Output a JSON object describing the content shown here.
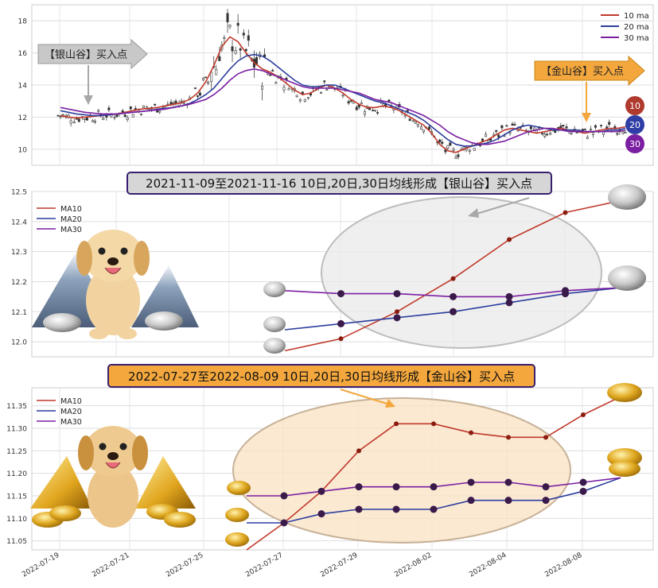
{
  "chart_data": [
    {
      "type": "line",
      "panel": "overview",
      "description_of_series": "candlestick price with 10/20/30 day moving averages",
      "ylim": [
        9.0,
        19.0
      ],
      "yticks": [
        10,
        12,
        14,
        16,
        18
      ],
      "grid": true,
      "legend_position": "top-right",
      "legend": [
        "10 ma",
        "20 ma",
        "30 ma"
      ],
      "badges": [
        "10",
        "20",
        "30"
      ],
      "colors": {
        "ma10": "#c0392b",
        "ma20": "#2c3e9e",
        "ma30": "#7b1fa2"
      },
      "annotations": [
        {
          "label": "【银山谷】买入点",
          "style": "gray"
        },
        {
          "label": "【金山谷】买入点",
          "style": "orange"
        }
      ],
      "series": [
        {
          "name": "10 ma",
          "key": "ma10",
          "values": [
            12.1,
            12.0,
            11.95,
            12.0,
            12.05,
            12.1,
            12.15,
            12.2,
            12.3,
            12.4,
            12.5,
            12.55,
            12.6,
            12.7,
            12.8,
            12.9,
            13.1,
            13.5,
            14.2,
            15.2,
            16.4,
            17.0,
            16.7,
            16.0,
            15.4,
            15.0,
            14.8,
            14.5,
            14.1,
            13.7,
            13.4,
            13.5,
            13.8,
            14.0,
            13.8,
            13.5,
            13.1,
            12.8,
            12.6,
            12.6,
            12.7,
            12.6,
            12.4,
            12.1,
            11.8,
            11.5,
            11.0,
            10.3,
            9.9,
            9.8,
            10.0,
            10.2,
            10.4,
            10.6,
            10.9,
            11.2,
            11.3,
            11.2,
            11.1,
            11.0,
            11.1,
            11.2,
            11.3,
            11.2,
            11.1,
            11.0,
            11.1,
            11.2,
            11.3,
            11.3,
            11.4
          ]
        },
        {
          "name": "20 ma",
          "key": "ma20",
          "values": [
            12.4,
            12.3,
            12.2,
            12.15,
            12.1,
            12.1,
            12.15,
            12.2,
            12.25,
            12.3,
            12.35,
            12.4,
            12.5,
            12.55,
            12.6,
            12.7,
            12.85,
            13.1,
            13.4,
            13.8,
            14.4,
            15.0,
            15.5,
            15.8,
            15.9,
            15.8,
            15.5,
            15.1,
            14.7,
            14.3,
            14.0,
            13.9,
            13.9,
            14.0,
            14.0,
            13.8,
            13.6,
            13.4,
            13.2,
            13.0,
            12.9,
            12.7,
            12.5,
            12.3,
            12.1,
            11.8,
            11.4,
            11.0,
            10.6,
            10.3,
            10.2,
            10.2,
            10.3,
            10.4,
            10.6,
            10.9,
            11.2,
            11.4,
            11.5,
            11.4,
            11.3,
            11.2,
            11.2,
            11.2,
            11.2,
            11.1,
            11.1,
            11.1,
            11.2,
            11.2,
            11.3
          ]
        },
        {
          "name": "30 ma",
          "key": "ma30",
          "values": [
            12.6,
            12.5,
            12.4,
            12.3,
            12.25,
            12.2,
            12.2,
            12.2,
            12.25,
            12.3,
            12.35,
            12.4,
            12.45,
            12.5,
            12.6,
            12.7,
            12.8,
            12.95,
            13.1,
            13.4,
            13.8,
            14.3,
            14.7,
            14.9,
            15.0,
            14.9,
            14.7,
            14.5,
            14.3,
            14.1,
            13.9,
            13.8,
            13.8,
            13.8,
            13.8,
            13.7,
            13.6,
            13.5,
            13.3,
            13.1,
            13.0,
            12.9,
            12.7,
            12.5,
            12.3,
            12.1,
            11.8,
            11.5,
            11.1,
            10.8,
            10.6,
            10.4,
            10.3,
            10.3,
            10.4,
            10.5,
            10.7,
            10.9,
            11.1,
            11.2,
            11.3,
            11.3,
            11.2,
            11.1,
            11.1,
            11.1,
            11.1,
            11.1,
            11.1,
            11.1,
            11.2
          ]
        }
      ]
    },
    {
      "type": "line",
      "panel": "silver-valley-zoom",
      "title": "2021-11-09至2021-11-16 10日,20日,30日均线形成【银山谷】买入点",
      "ylim": [
        11.95,
        12.5
      ],
      "yticks": [
        12.0,
        12.1,
        12.2,
        12.3,
        12.4,
        12.5
      ],
      "grid": true,
      "legend_position": "top-left",
      "series": [
        {
          "name": "MA10",
          "key": "ma10",
          "values": [
            11.97,
            12.01,
            12.1,
            12.21,
            12.34,
            12.43,
            12.47
          ]
        },
        {
          "name": "MA20",
          "key": "ma20",
          "values": [
            12.04,
            12.06,
            12.08,
            12.1,
            12.13,
            12.16,
            12.18
          ]
        },
        {
          "name": "MA30",
          "key": "ma30",
          "values": [
            12.17,
            12.16,
            12.16,
            12.15,
            12.15,
            12.17,
            12.18
          ]
        }
      ]
    },
    {
      "type": "line",
      "panel": "gold-valley-zoom",
      "title": "2022-07-27至2022-08-09 10日,20日,30日均线形成【金山谷】买入点",
      "ylim": [
        11.03,
        11.39
      ],
      "yticks": [
        11.05,
        11.1,
        11.15,
        11.2,
        11.25,
        11.3,
        11.35
      ],
      "x_tick_labels": [
        "2022-07-19",
        "2022-07-21",
        "2022-07-25",
        "2022-07-27",
        "2022-07-29",
        "2022-08-02",
        "2022-08-04",
        "2022-08-08"
      ],
      "grid": true,
      "legend_position": "top-left",
      "series": [
        {
          "name": "MA10",
          "key": "ma10",
          "values": [
            11.03,
            11.09,
            11.16,
            11.25,
            11.31,
            11.31,
            11.29,
            11.28,
            11.28,
            11.33,
            11.37
          ]
        },
        {
          "name": "MA20",
          "key": "ma20",
          "values": [
            11.09,
            11.09,
            11.11,
            11.12,
            11.12,
            11.12,
            11.14,
            11.14,
            11.14,
            11.16,
            11.19
          ]
        },
        {
          "name": "MA30",
          "key": "ma30",
          "values": [
            11.15,
            11.15,
            11.16,
            11.17,
            11.17,
            11.17,
            11.18,
            11.18,
            11.17,
            11.18,
            11.19
          ]
        }
      ]
    }
  ]
}
